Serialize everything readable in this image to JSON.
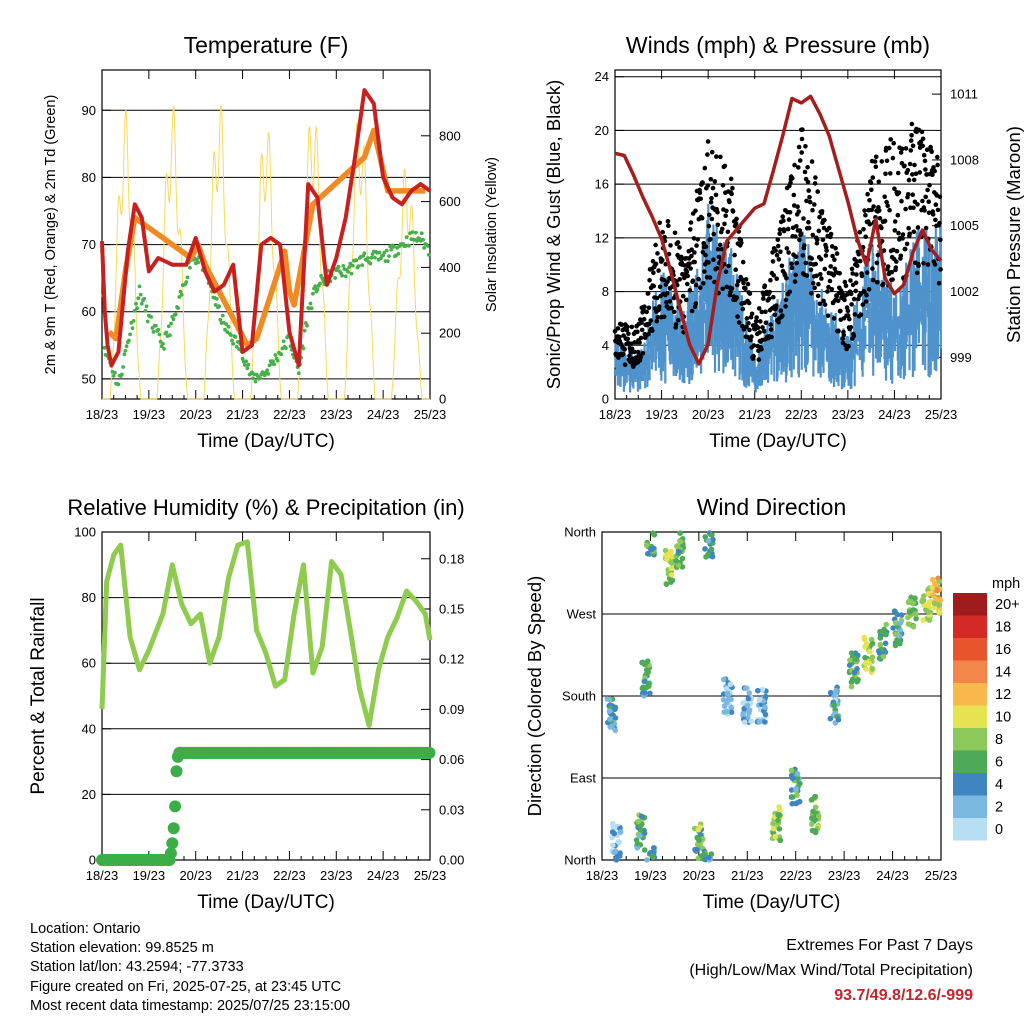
{
  "chart_data": [
    {
      "id": "temperature",
      "type": "line",
      "title": "Temperature (F)",
      "xlabel": "Time (Day/UTC)",
      "ylabel": "2m & 9m T (Red, Orange) & 2m Td (Green)",
      "y2label": "Solar Insolation (Yellow)",
      "x_ticks": [
        "18/23",
        "19/23",
        "20/23",
        "21/23",
        "22/23",
        "23/23",
        "24/23",
        "25/23"
      ],
      "ylim": [
        47,
        96
      ],
      "y_ticks": [
        50,
        60,
        70,
        80,
        90
      ],
      "y2lim": [
        0,
        1000
      ],
      "y2_ticks": [
        0,
        200,
        400,
        600,
        800
      ],
      "grid": "horizontal",
      "series": [
        {
          "name": "2m T",
          "color": "#c8201e",
          "x": [
            0,
            0.06,
            0.12,
            0.2,
            0.35,
            0.55,
            0.7,
            0.85,
            1.0,
            1.2,
            1.5,
            1.8,
            2.0,
            2.2,
            2.4,
            2.6,
            2.8,
            3.0,
            3.2,
            3.4,
            3.6,
            3.8,
            4.0,
            4.2,
            4.4,
            4.6,
            4.8,
            5.0,
            5.2,
            5.4,
            5.6,
            5.8,
            6.0,
            6.2,
            6.4,
            6.6,
            6.8,
            7.0
          ],
          "y": [
            70.5,
            60,
            55,
            52,
            54,
            69,
            76,
            74,
            66,
            68,
            67,
            67,
            71,
            66,
            63,
            64,
            67,
            54,
            55,
            70,
            71,
            70,
            57,
            52,
            79,
            77,
            64,
            68,
            74,
            83,
            93,
            91,
            80,
            77,
            76,
            78,
            79,
            78
          ]
        },
        {
          "name": "9m T",
          "color": "#f08a24",
          "x": [
            0.15,
            0.3,
            0.5,
            0.7,
            1.9,
            2.05,
            2.2,
            3.1,
            3.3,
            3.9,
            4.0,
            4.1,
            4.5,
            5.6,
            5.8,
            6.1,
            6.9
          ],
          "y": [
            57,
            56,
            66,
            74,
            68,
            70,
            67,
            55,
            56,
            69,
            63,
            61,
            76,
            83,
            87,
            78,
            78
          ]
        },
        {
          "name": "2m Td",
          "color": "#46b04a",
          "x": [
            0,
            0.05,
            0.2,
            0.35,
            0.5,
            0.8,
            1.0,
            1.3,
            1.6,
            1.9,
            2.1,
            2.4,
            2.6,
            2.8,
            3.0,
            3.2,
            3.5,
            3.8,
            4.0,
            4.2,
            4.4,
            4.6,
            4.8,
            5.0,
            5.2,
            5.4,
            5.6,
            5.8,
            6.0,
            6.2,
            6.4,
            6.6,
            6.8,
            7.0
          ],
          "y": [
            70,
            55,
            52,
            49,
            54,
            63,
            59,
            55,
            60,
            68,
            68,
            62,
            58,
            56,
            54,
            50,
            51,
            54,
            56,
            51,
            60,
            64,
            65,
            66,
            66,
            67,
            68,
            68,
            68,
            69,
            70,
            71,
            71,
            69
          ]
        },
        {
          "name": "Solar Insolation",
          "axis": "y2",
          "color": "#f7d95a",
          "peaks_x": [
            0.5,
            1.5,
            2.5,
            3.5,
            4.5,
            5.5,
            6.5
          ],
          "peaks_y": [
            880,
            900,
            920,
            860,
            910,
            890,
            720
          ]
        }
      ]
    },
    {
      "id": "winds",
      "type": "scatter",
      "title": "Winds (mph) & Pressure (mb)",
      "xlabel": "Time (Day/UTC)",
      "ylabel": "Sonic/Prop Wind & Gust (Blue, Black)",
      "y2label": "Station Pressure (Maroon)",
      "x_ticks": [
        "18/23",
        "19/23",
        "20/23",
        "21/23",
        "22/23",
        "23/23",
        "24/23",
        "25/23"
      ],
      "ylim": [
        0,
        24.5
      ],
      "y_ticks": [
        0,
        4,
        8,
        12,
        16,
        20,
        24
      ],
      "y2lim": [
        997.1,
        1012.1
      ],
      "y2_ticks": [
        999,
        1002,
        1005,
        1008,
        1011
      ],
      "grid": "horizontal",
      "series": [
        {
          "name": "Wind",
          "color": "#4f93cc",
          "x": [
            0,
            0.5,
            1,
            1.5,
            2,
            2.5,
            3,
            3.5,
            4,
            4.5,
            5,
            5.5,
            6,
            6.5,
            7
          ],
          "y": [
            3,
            2,
            6,
            4,
            9,
            7,
            2,
            5,
            8,
            5,
            3,
            8,
            5,
            8,
            8
          ]
        },
        {
          "name": "Gust",
          "color": "#000000",
          "x": [
            0,
            0.5,
            1,
            1.5,
            2,
            2.5,
            3,
            3.5,
            4,
            4.5,
            5,
            5.5,
            6,
            6.5,
            7
          ],
          "y": [
            4,
            4,
            10,
            8,
            14,
            12,
            4,
            9,
            15,
            10,
            6,
            13,
            14,
            15,
            13
          ]
        },
        {
          "name": "Pressure",
          "axis": "y2",
          "color": "#a31f1f",
          "x": [
            0,
            0.2,
            0.4,
            0.6,
            0.8,
            1.0,
            1.2,
            1.4,
            1.6,
            1.8,
            2.0,
            2.2,
            2.4,
            2.6,
            2.8,
            3.0,
            3.2,
            3.4,
            3.6,
            3.8,
            4.0,
            4.2,
            4.4,
            4.6,
            4.8,
            5.0,
            5.2,
            5.4,
            5.6,
            5.8,
            6.0,
            6.2,
            6.4,
            6.6,
            6.8,
            7.0
          ],
          "y": [
            1008.3,
            1008.2,
            1007.3,
            1006.3,
            1005.4,
            1004.4,
            1002.9,
            1001.2,
            999.6,
            998.7,
            999.6,
            1002.4,
            1004.3,
            1004.8,
            1005.3,
            1005.8,
            1006.0,
            1007.5,
            1009.1,
            1010.8,
            1010.6,
            1010.9,
            1010.1,
            1009.1,
            1007.6,
            1006.1,
            1004.4,
            1003.2,
            1005.3,
            1002.6,
            1001.9,
            1002.3,
            1003.8,
            1004.8,
            1003.9,
            1003.4
          ]
        }
      ]
    },
    {
      "id": "humidity",
      "type": "line",
      "title": "Relative Humidity (%) & Precipitation (in)",
      "xlabel": "Time (Day/UTC)",
      "ylabel": "Percent & Total Rainfall",
      "x_ticks": [
        "18/23",
        "19/23",
        "20/23",
        "21/23",
        "22/23",
        "23/23",
        "24/23",
        "25/23"
      ],
      "ylim": [
        0,
        100
      ],
      "y_ticks": [
        0,
        20,
        40,
        60,
        80,
        100
      ],
      "y2lim": [
        0,
        0.196
      ],
      "y2_ticks": [
        "0.00",
        "0.03",
        "0.06",
        "0.09",
        "0.12",
        "0.15",
        "0.18"
      ],
      "grid": "horizontal",
      "series": [
        {
          "name": "Relative Humidity",
          "color": "#8fcb4f",
          "x": [
            0,
            0.1,
            0.25,
            0.4,
            0.6,
            0.8,
            1.0,
            1.3,
            1.5,
            1.7,
            1.9,
            2.1,
            2.3,
            2.5,
            2.7,
            2.9,
            3.1,
            3.3,
            3.5,
            3.7,
            3.9,
            4.1,
            4.3,
            4.5,
            4.7,
            4.9,
            5.1,
            5.3,
            5.5,
            5.7,
            5.9,
            6.1,
            6.3,
            6.5,
            6.7,
            6.9,
            7.0
          ],
          "y": [
            46,
            85,
            93,
            96,
            68,
            58,
            64,
            75,
            90,
            78,
            72,
            75,
            60,
            68,
            86,
            96,
            97,
            70,
            63,
            53,
            55,
            75,
            90,
            57,
            65,
            91,
            87,
            70,
            52,
            41,
            58,
            68,
            74,
            82,
            79,
            75,
            67
          ]
        },
        {
          "name": "Total Rainfall",
          "axis": "y2",
          "color": "#3cae47",
          "x": [
            0,
            1.25,
            1.45,
            1.5,
            1.55,
            1.6,
            1.65,
            7.0
          ],
          "y": [
            0.0,
            0.0,
            0.0,
            0.01,
            0.025,
            0.06,
            0.064,
            0.064
          ]
        }
      ]
    },
    {
      "id": "wind_direction",
      "type": "scatter",
      "title": "Wind Direction",
      "xlabel": "Time (Day/UTC)",
      "ylabel": "Direction (Colored By Speed)",
      "x_ticks": [
        "18/23",
        "19/23",
        "20/23",
        "21/23",
        "22/23",
        "23/23",
        "24/23",
        "25/23"
      ],
      "y_ticks": [
        "North",
        "East",
        "South",
        "West",
        "North"
      ],
      "ylim": [
        0,
        360
      ],
      "grid": "horizontal",
      "colorbar": {
        "title": "mph",
        "labels": [
          "20+",
          "18",
          "16",
          "14",
          "12",
          "10",
          "8",
          "6",
          "4",
          "2",
          "0"
        ],
        "colors": [
          "#9e1b1e",
          "#d42a26",
          "#e8542c",
          "#f3864a",
          "#f9b84c",
          "#e5e352",
          "#8cc85a",
          "#4daa58",
          "#3f86c1",
          "#7ab8e2",
          "#b7def2"
        ]
      },
      "clusters": [
        {
          "x": 0.2,
          "dir": 160,
          "speed": 3
        },
        {
          "x": 0.3,
          "dir": 20,
          "speed": 2
        },
        {
          "x": 0.8,
          "dir": 30,
          "speed": 5
        },
        {
          "x": 0.9,
          "dir": 200,
          "speed": 5
        },
        {
          "x": 1.0,
          "dir": 355,
          "speed": 5
        },
        {
          "x": 1.4,
          "dir": 320,
          "speed": 9
        },
        {
          "x": 1.6,
          "dir": 340,
          "speed": 7
        },
        {
          "x": 2.0,
          "dir": 20,
          "speed": 7
        },
        {
          "x": 2.2,
          "dir": 350,
          "speed": 5
        },
        {
          "x": 2.6,
          "dir": 180,
          "speed": 2
        },
        {
          "x": 3.0,
          "dir": 170,
          "speed": 2
        },
        {
          "x": 3.3,
          "dir": 170,
          "speed": 3
        },
        {
          "x": 3.6,
          "dir": 40,
          "speed": 8
        },
        {
          "x": 4.0,
          "dir": 80,
          "speed": 5
        },
        {
          "x": 4.4,
          "dir": 50,
          "speed": 7
        },
        {
          "x": 4.8,
          "dir": 170,
          "speed": 3
        },
        {
          "x": 5.2,
          "dir": 210,
          "speed": 6
        },
        {
          "x": 5.5,
          "dir": 225,
          "speed": 8
        },
        {
          "x": 5.8,
          "dir": 240,
          "speed": 6
        },
        {
          "x": 6.1,
          "dir": 255,
          "speed": 5
        },
        {
          "x": 6.4,
          "dir": 270,
          "speed": 7
        },
        {
          "x": 6.7,
          "dir": 282,
          "speed": 8
        },
        {
          "x": 6.9,
          "dir": 290,
          "speed": 11
        }
      ]
    }
  ],
  "info": {
    "location": "Location: Ontario",
    "elevation": "Station elevation: 99.8525 m",
    "latlon": "Station lat/lon: 43.2594; -77.3733",
    "created": "Figure created on Fri, 2025-07-25, at 23:45 UTC",
    "latest": "Most recent data timestamp: 2025/07/25 23:15:00"
  },
  "extremes": {
    "title": "Extremes For Past 7 Days",
    "subtitle": "(High/Low/Max Wind/Total Precipitation)",
    "value": "93.7/49.8/12.6/-999"
  }
}
